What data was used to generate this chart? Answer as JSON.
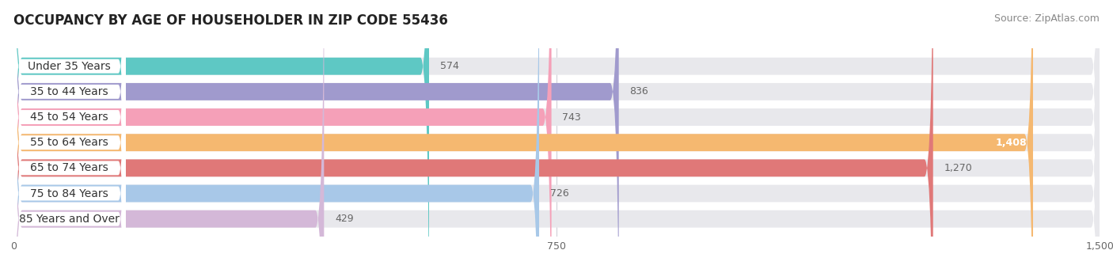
{
  "title": "OCCUPANCY BY AGE OF HOUSEHOLDER IN ZIP CODE 55436",
  "source": "Source: ZipAtlas.com",
  "categories": [
    "Under 35 Years",
    "35 to 44 Years",
    "45 to 54 Years",
    "55 to 64 Years",
    "65 to 74 Years",
    "75 to 84 Years",
    "85 Years and Over"
  ],
  "values": [
    574,
    836,
    743,
    1408,
    1270,
    726,
    429
  ],
  "bar_colors": [
    "#5ec8c4",
    "#a09acd",
    "#f5a0b8",
    "#f5b870",
    "#e07878",
    "#a8c8e8",
    "#d4b8d8"
  ],
  "bar_bg_color": "#e8e8ec",
  "xlim_max": 1500,
  "xticks": [
    0,
    750,
    1500
  ],
  "xtick_labels": [
    "0",
    "750",
    "1,500"
  ],
  "title_fontsize": 12,
  "source_fontsize": 9,
  "label_fontsize": 10,
  "value_fontsize": 9,
  "figsize": [
    14.06,
    3.4
  ],
  "dpi": 100,
  "background_color": "#ffffff",
  "bar_height": 0.68,
  "label_bg_color": "#ffffff",
  "grid_color": "#d0d0d8",
  "value_color_light": "#ffffff",
  "value_color_dark": "#666666"
}
